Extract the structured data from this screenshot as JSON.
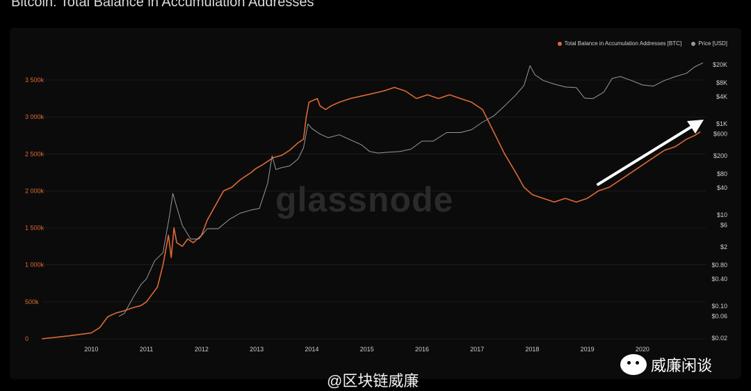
{
  "title": "Bitcoin: Total Balance in Accumulation Addresses",
  "watermark": "glassnode",
  "credit": "@区块链威廉",
  "brand": {
    "name": "威廉闲谈",
    "icon": "wechat-icon"
  },
  "colors": {
    "balance": "#e06a35",
    "price": "#9a9a9a",
    "grid": "#262626"
  },
  "chart_data": {
    "type": "line",
    "title": "Bitcoin: Total Balance in Accumulation Addresses",
    "legend_position": "top-right",
    "grid": true,
    "x_ticks": [
      "2010",
      "2011",
      "2012",
      "2013",
      "2014",
      "2015",
      "2016",
      "2017",
      "2018",
      "2019",
      "2020"
    ],
    "xlim": [
      2009.1,
      2021.15
    ],
    "y_left": {
      "ticks": [
        "0",
        "500k",
        "1 000k",
        "1 500k",
        "2 000k",
        "2 500k",
        "3 000k",
        "3 500k"
      ],
      "lim": [
        0,
        3500000
      ]
    },
    "y_right": {
      "scale": "log",
      "ticks": [
        "$0.02",
        "$0.06",
        "$0.10",
        "$0.40",
        "$0.80",
        "$2",
        "$6",
        "$10",
        "$40",
        "$80",
        "$200",
        "$600",
        "$1K",
        "$4K",
        "$8K",
        "$20K"
      ],
      "lim": [
        0.02,
        20000
      ]
    },
    "series": [
      {
        "name": "Total Balance in Accumulation Addresses [BTC]",
        "axis": "left",
        "x": [
          2009.1,
          2009.6,
          2010.0,
          2010.15,
          2010.3,
          2010.45,
          2010.6,
          2010.75,
          2010.9,
          2011.0,
          2011.1,
          2011.2,
          2011.3,
          2011.4,
          2011.45,
          2011.5,
          2011.55,
          2011.65,
          2011.75,
          2011.85,
          2012.0,
          2012.1,
          2012.25,
          2012.4,
          2012.55,
          2012.7,
          2012.8,
          2012.9,
          2012.98,
          2013.1,
          2013.2,
          2013.3,
          2013.45,
          2013.6,
          2013.75,
          2013.85,
          2013.9,
          2013.95,
          2014.1,
          2014.15,
          2014.25,
          2014.35,
          2014.5,
          2014.7,
          2015.0,
          2015.3,
          2015.5,
          2015.7,
          2015.9,
          2016.1,
          2016.3,
          2016.5,
          2016.7,
          2016.9,
          2017.1,
          2017.3,
          2017.5,
          2017.7,
          2017.85,
          2018.0,
          2018.2,
          2018.4,
          2018.6,
          2018.8,
          2019.0,
          2019.2,
          2019.4,
          2019.6,
          2019.8,
          2020.0,
          2020.2,
          2020.4,
          2020.6,
          2020.8,
          2020.95,
          2021.05
        ],
        "y": [
          0,
          40000,
          80000,
          150000,
          300000,
          350000,
          380000,
          420000,
          450000,
          500000,
          600000,
          700000,
          1000000,
          1400000,
          1100000,
          1500000,
          1300000,
          1250000,
          1350000,
          1300000,
          1400000,
          1600000,
          1800000,
          2000000,
          2050000,
          2150000,
          2200000,
          2250000,
          2300000,
          2350000,
          2400000,
          2450000,
          2480000,
          2550000,
          2650000,
          2700000,
          3000000,
          3200000,
          3250000,
          3150000,
          3100000,
          3150000,
          3200000,
          3250000,
          3300000,
          3350000,
          3400000,
          3350000,
          3250000,
          3300000,
          3250000,
          3300000,
          3250000,
          3200000,
          3100000,
          2800000,
          2500000,
          2250000,
          2050000,
          1950000,
          1900000,
          1850000,
          1900000,
          1850000,
          1900000,
          2000000,
          2050000,
          2150000,
          2250000,
          2350000,
          2450000,
          2550000,
          2600000,
          2700000,
          2750000,
          2800000
        ]
      },
      {
        "name": "Price [USD]",
        "axis": "right",
        "x": [
          2010.5,
          2010.6,
          2010.75,
          2010.9,
          2011.0,
          2011.15,
          2011.3,
          2011.42,
          2011.48,
          2011.55,
          2011.65,
          2011.8,
          2011.95,
          2012.1,
          2012.3,
          2012.5,
          2012.7,
          2012.9,
          2013.05,
          2013.2,
          2013.28,
          2013.35,
          2013.45,
          2013.6,
          2013.75,
          2013.85,
          2013.93,
          2014.0,
          2014.15,
          2014.3,
          2014.5,
          2014.7,
          2014.9,
          2015.05,
          2015.2,
          2015.4,
          2015.6,
          2015.8,
          2016.0,
          2016.2,
          2016.45,
          2016.7,
          2016.9,
          2017.1,
          2017.3,
          2017.5,
          2017.7,
          2017.85,
          2017.96,
          2018.05,
          2018.2,
          2018.4,
          2018.6,
          2018.8,
          2018.95,
          2019.1,
          2019.3,
          2019.45,
          2019.6,
          2019.8,
          2020.0,
          2020.2,
          2020.4,
          2020.6,
          2020.8,
          2020.95,
          2021.1
        ],
        "y": [
          0.06,
          0.07,
          0.15,
          0.3,
          0.4,
          1,
          1.5,
          10,
          30,
          15,
          6,
          3,
          3,
          5,
          5,
          8,
          11,
          13,
          14,
          50,
          200,
          100,
          110,
          120,
          170,
          300,
          1000,
          800,
          600,
          500,
          580,
          450,
          350,
          250,
          230,
          240,
          250,
          280,
          420,
          420,
          650,
          650,
          750,
          1100,
          1500,
          2500,
          4300,
          7000,
          19000,
          12000,
          9000,
          7500,
          6500,
          6300,
          3700,
          3600,
          5000,
          10000,
          11000,
          9000,
          7200,
          6800,
          9000,
          11000,
          13000,
          18000,
          22000
        ]
      }
    ]
  }
}
